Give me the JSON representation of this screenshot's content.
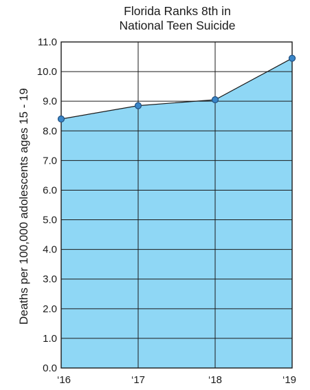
{
  "chart_data": {
    "type": "area",
    "title": [
      "Florida Ranks 8th in",
      "National Teen Suicide"
    ],
    "xlabel": "",
    "ylabel": "Deaths per 100,000 adolescents ages 15 - 19",
    "categories": [
      "‘16",
      "‘17",
      "‘18",
      "‘19"
    ],
    "values": [
      8.4,
      8.85,
      9.05,
      10.45
    ],
    "ylim": [
      0,
      11
    ],
    "yticks": [
      "0.0",
      "1.0",
      "2.0",
      "3.0",
      "4.0",
      "5.0",
      "6.0",
      "7.0",
      "8.0",
      "9.0",
      "10.0",
      "11.0"
    ],
    "grid": true,
    "fill_color": "#8fd7f5",
    "line_color": "#1a1a1a",
    "marker_color": "#3a86c8"
  }
}
